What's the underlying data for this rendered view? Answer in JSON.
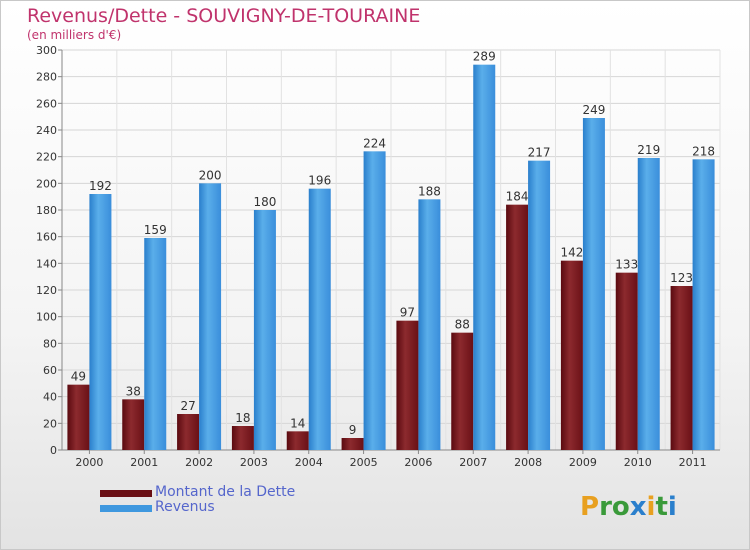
{
  "header": {
    "title": "Revenus/Dette - SOUVIGNY-DE-TOURAINE",
    "subtitle": "(en milliers d'€)"
  },
  "logo": {
    "text": "Proxiti"
  },
  "colors": {
    "title": "#c0336c",
    "dette": "#7a1a1e",
    "revenus": "#3f98df",
    "legend_text": "#5566cc"
  },
  "chart_data": {
    "type": "bar",
    "categories": [
      "2000",
      "2001",
      "2002",
      "2003",
      "2004",
      "2005",
      "2006",
      "2007",
      "2008",
      "2009",
      "2010",
      "2011"
    ],
    "series": [
      {
        "name": "Montant de la Dette",
        "values": [
          49,
          38,
          27,
          18,
          14,
          9,
          97,
          88,
          184,
          142,
          133,
          123
        ]
      },
      {
        "name": "Revenus",
        "values": [
          192,
          159,
          200,
          180,
          196,
          224,
          188,
          289,
          217,
          249,
          219,
          218
        ]
      }
    ],
    "ylim": [
      0,
      300
    ],
    "yticks": [
      0,
      20,
      40,
      60,
      80,
      100,
      120,
      140,
      160,
      180,
      200,
      220,
      240,
      260,
      280,
      300
    ],
    "grid": true,
    "legend": "bottom-left"
  }
}
